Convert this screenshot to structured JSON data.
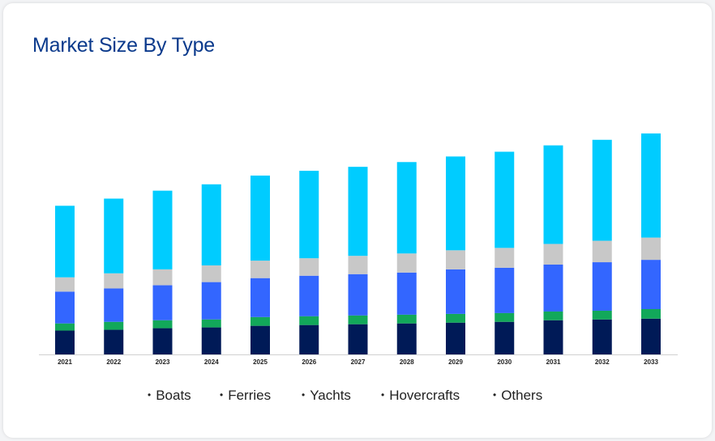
{
  "title": "Market Size By Type",
  "colors": {
    "Boats": "#001a57",
    "Ferries": "#12a85a",
    "Yachts": "#3366ff",
    "Hovercrafts": "#c8c8c8",
    "Others": "#00ccff"
  },
  "chart_data": {
    "type": "bar",
    "stacked": true,
    "title": "Market Size By Type",
    "xlabel": "",
    "ylabel": "",
    "grid": false,
    "legend": "bottom",
    "categories": [
      "2021",
      "2022",
      "2023",
      "2024",
      "2025",
      "2026",
      "2027",
      "2028",
      "2029",
      "2030",
      "2031",
      "2032",
      "2033"
    ],
    "series": [
      {
        "name": "Boats",
        "values": [
          30,
          31,
          33,
          34,
          36,
          37,
          38,
          39,
          40,
          41,
          43,
          44,
          45
        ]
      },
      {
        "name": "Ferries",
        "values": [
          9,
          10,
          10,
          10,
          11,
          11,
          11,
          11,
          11,
          11,
          11,
          11,
          12
        ]
      },
      {
        "name": "Yachts",
        "values": [
          40,
          42,
          44,
          47,
          49,
          51,
          52,
          53,
          56,
          57,
          59,
          61,
          62
        ]
      },
      {
        "name": "Hovercrafts",
        "values": [
          18,
          19,
          20,
          21,
          22,
          22,
          23,
          24,
          24,
          25,
          26,
          27,
          28
        ]
      },
      {
        "name": "Others",
        "values": [
          90,
          94,
          99,
          102,
          107,
          110,
          112,
          115,
          118,
          121,
          124,
          127,
          131
        ]
      }
    ],
    "ylim": [
      0,
      290
    ]
  }
}
